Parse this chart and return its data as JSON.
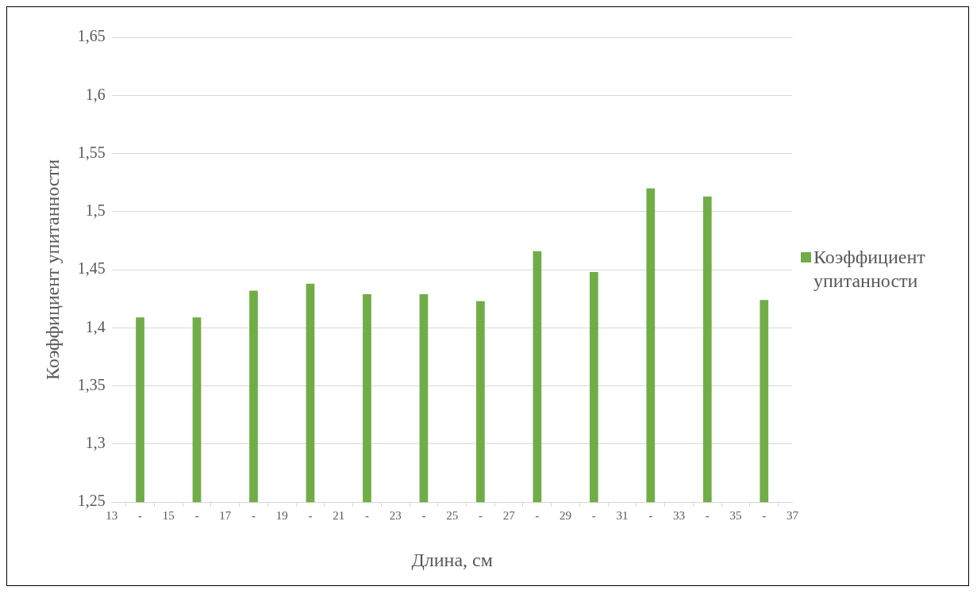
{
  "chart_data": {
    "type": "bar",
    "xlabel": "Длина, см",
    "ylabel": "Коэффициент упитанности",
    "x": [
      14,
      16,
      18,
      20,
      22,
      24,
      26,
      28,
      30,
      32,
      34,
      36
    ],
    "series": [
      {
        "name": "Коэффициент упитанности",
        "color": "#70ad47",
        "values": [
          1.409,
          1.409,
          1.432,
          1.438,
          1.429,
          1.429,
          1.423,
          1.466,
          1.448,
          1.52,
          1.513,
          1.424
        ]
      }
    ],
    "xlim": [
      13,
      37
    ],
    "xticks": [
      13,
      {
        "value": 14,
        "label": "-"
      },
      15,
      {
        "value": 16,
        "label": "-"
      },
      17,
      {
        "value": 18,
        "label": "-"
      },
      19,
      {
        "value": 20,
        "label": "-"
      },
      21,
      {
        "value": 22,
        "label": "-"
      },
      23,
      {
        "value": 24,
        "label": "-"
      },
      25,
      {
        "value": 26,
        "label": "-"
      },
      27,
      {
        "value": 28,
        "label": "-"
      },
      29,
      {
        "value": 30,
        "label": "-"
      },
      31,
      {
        "value": 32,
        "label": "-"
      },
      33,
      {
        "value": 34,
        "label": "-"
      },
      35,
      {
        "value": 36,
        "label": "-"
      },
      37
    ],
    "ylim": [
      1.25,
      1.65
    ],
    "yticks": [
      {
        "value": 1.25,
        "label": "1,25"
      },
      {
        "value": 1.3,
        "label": "1,3"
      },
      {
        "value": 1.35,
        "label": "1,35"
      },
      {
        "value": 1.4,
        "label": "1,4"
      },
      {
        "value": 1.45,
        "label": "1,45"
      },
      {
        "value": 1.5,
        "label": "1,5"
      },
      {
        "value": 1.55,
        "label": "1,55"
      },
      {
        "value": 1.6,
        "label": "1,6"
      },
      {
        "value": 1.65,
        "label": "1,65"
      }
    ],
    "grid": "y",
    "legend": "right"
  }
}
